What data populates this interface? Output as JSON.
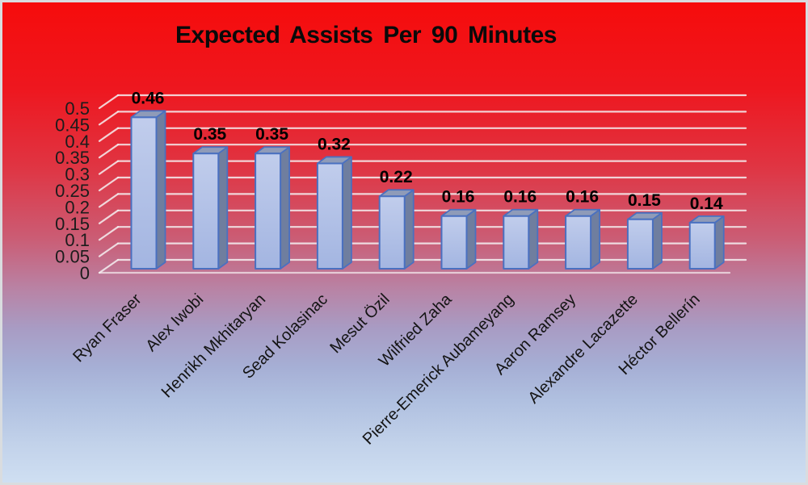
{
  "chart_data": {
    "type": "bar",
    "style": "3d-column",
    "title": "Expected Assists Per 90 Minutes",
    "categories": [
      "Ryan Fraser",
      "Alex Iwobi",
      "Henrikh Mkhitaryan",
      "Sead Kolasinac",
      "Mesut Özil",
      "Wilfried Zaha",
      "Pierre-Emerick Aubameyang",
      "Aaron Ramsey",
      "Alexandre Lacazette",
      "Héctor Bellerín"
    ],
    "values": [
      0.46,
      0.35,
      0.35,
      0.32,
      0.22,
      0.16,
      0.16,
      0.16,
      0.15,
      0.14
    ],
    "data_labels": [
      "0.46",
      "0.35",
      "0.35",
      "0.32",
      "0.22",
      "0.16",
      "0.16",
      "0.16",
      "0.15",
      "0.14"
    ],
    "xlabel": "",
    "ylabel": "",
    "ylim": [
      0,
      0.5
    ],
    "ytick_step": 0.05,
    "ytick_labels": [
      "0",
      "0.05",
      "0.1",
      "0.15",
      "0.2",
      "0.25",
      "0.3",
      "0.35",
      "0.4",
      "0.45",
      "0.5"
    ],
    "grid": true,
    "legend": "none",
    "colors": {
      "background_top": "#f60c0c",
      "background_bottom": "#cfdff2",
      "bar_front_light": "#c1cdec",
      "bar_front": "#a3b5e1",
      "bar_top_face": "#8f9bb8",
      "bar_side_face": "#6f7e9f",
      "bar_border": "#4a70c0",
      "gridline": "#f5f0f1",
      "title_color": "#0a0a0a",
      "axis_label_color": "#1c1c1c",
      "value_label_color": "#000000"
    }
  }
}
